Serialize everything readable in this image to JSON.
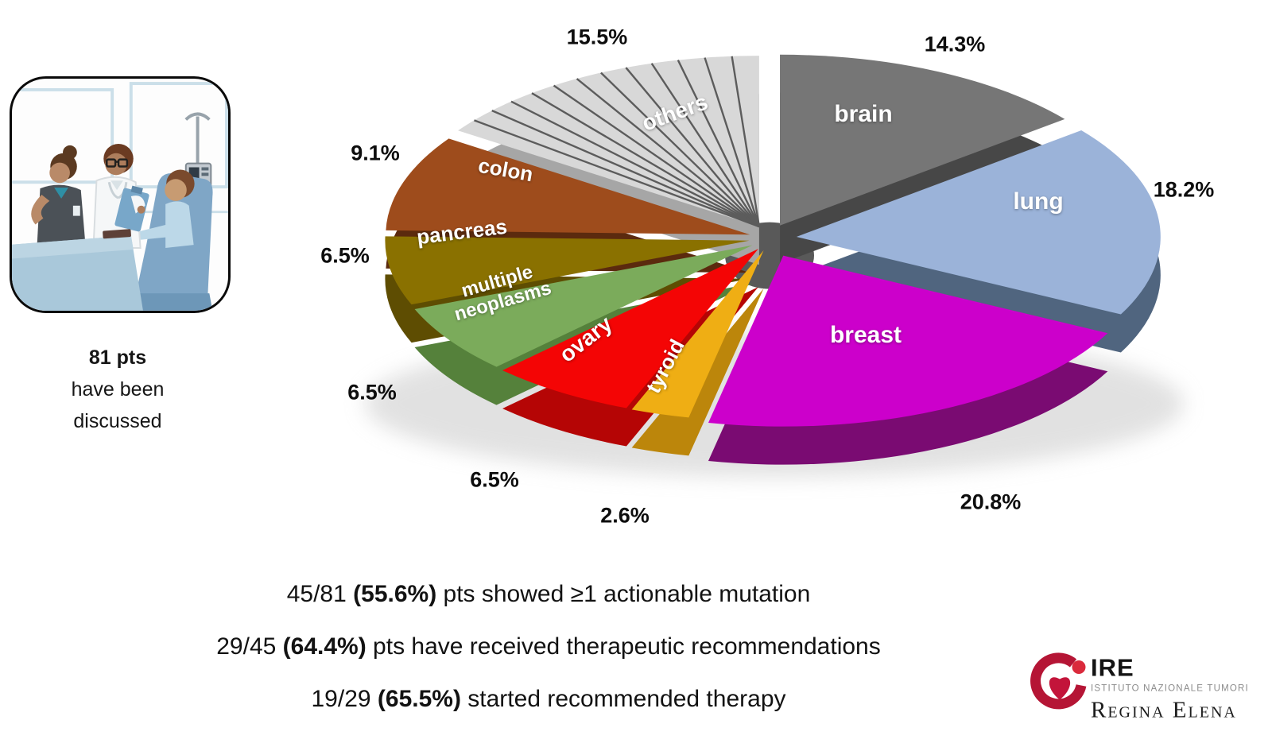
{
  "illustration": {
    "caption_bold": "81 pts",
    "caption_line2": "have been",
    "caption_line3": "discussed"
  },
  "stats": [
    {
      "prefix": "45/81 ",
      "bold": "(55.6%)",
      "rest": " pts showed ≥1 actionable mutation"
    },
    {
      "prefix": "29/45 ",
      "bold": "(64.4%)",
      "rest": " pts have received therapeutic recommendations"
    },
    {
      "prefix": "19/29 ",
      "bold": "(65.5%)",
      "rest": " started recommended therapy"
    }
  ],
  "logo": {
    "acronym": "IRE",
    "line1": "ISTITUTO NAZIONALE TUMORI",
    "line2": "Regina Elena"
  },
  "chart_data": {
    "type": "pie",
    "title": "",
    "unit": "percent of 81 discussed patients",
    "start_angle_deg": -90,
    "direction": "clockwise",
    "slices": [
      {
        "name": "brain",
        "label": "brain",
        "value": 14.3,
        "pct_label": "14.3%",
        "color_top": "#767676",
        "color_side": "#474747",
        "label_color": "#ffffff",
        "explode": 30
      },
      {
        "name": "lung",
        "label": "lung",
        "value": 18.2,
        "pct_label": "18.2%",
        "color_top": "#9BB3D9",
        "color_side": "#50657F",
        "label_color": "#ffffff",
        "explode": 34
      },
      {
        "name": "breast",
        "label": "breast",
        "value": 20.8,
        "pct_label": "20.8%",
        "color_top": "#CC00CB",
        "color_side": "#7A0B72",
        "label_color": "#ffffff",
        "explode": 40
      },
      {
        "name": "tyroid",
        "label": "tyroid",
        "value": 2.6,
        "pct_label": "2.6%",
        "color_top": "#EFAE14",
        "color_side": "#BC860B",
        "label_color": "#ffffff",
        "explode": 26
      },
      {
        "name": "ovary",
        "label": "ovary",
        "value": 6.5,
        "pct_label": "6.5%",
        "color_top": "#F40505",
        "color_side": "#B50505",
        "label_color": "#ffffff",
        "explode": 26
      },
      {
        "name": "multiple-neoplasms",
        "label": "multiple\nneoplasms",
        "value": 6.5,
        "pct_label": "6.5%",
        "color_top": "#7BAB5B",
        "color_side": "#55813B",
        "label_color": "#ffffff",
        "explode": 26
      },
      {
        "name": "pancreas",
        "label": "pancreas",
        "value": 6.5,
        "pct_label": "6.5%",
        "color_top": "#8A7100",
        "color_side": "#5E4D02",
        "label_color": "#ffffff",
        "explode": 26
      },
      {
        "name": "colon",
        "label": "colon",
        "value": 9.1,
        "pct_label": "9.1%",
        "color_top": "#9E4C1C",
        "color_side": "#5B2A0E",
        "label_color": "#ffffff",
        "explode": 26
      },
      {
        "name": "others",
        "label": "others",
        "value": 15.5,
        "pct_label": "15.5%",
        "color_top": "#D8D8D8",
        "color_side": "#A6A6A6",
        "label_color": "#ffffff",
        "explode": 28,
        "hatch_lines": 12,
        "hatch_color": "#5C5C5C"
      }
    ]
  }
}
